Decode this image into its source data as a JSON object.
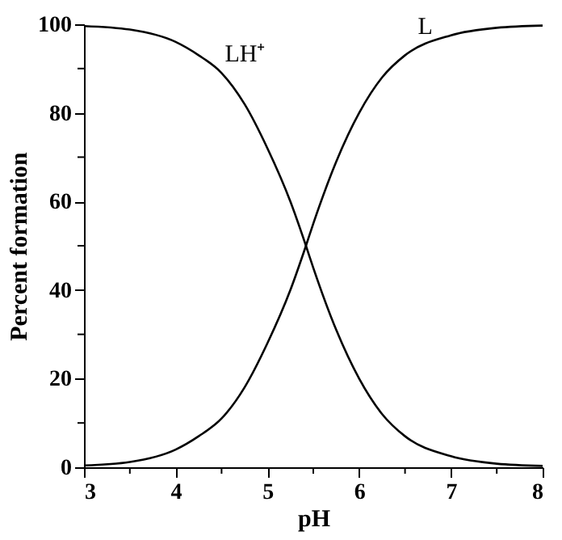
{
  "chart_data": {
    "type": "line",
    "xlabel": "pH",
    "ylabel": "Percent formation",
    "x": [
      3,
      3.5,
      4,
      4.25,
      4.5,
      4.75,
      5,
      5.25,
      5.42,
      5.5,
      5.75,
      6,
      6.25,
      6.5,
      7,
      7.5,
      8
    ],
    "series": [
      {
        "name": "LH⁺",
        "color": "#000000",
        "values": [
          99.6,
          98.8,
          96,
          93,
          89,
          82,
          72,
          60,
          50,
          45,
          31,
          20,
          12,
          7,
          2.5,
          0.8,
          0.3
        ]
      },
      {
        "name": "L",
        "color": "#000000",
        "values": [
          0.4,
          1.2,
          4,
          7,
          11,
          18,
          28,
          40,
          50,
          55,
          69,
          80,
          88,
          93,
          97.5,
          99.2,
          99.7
        ]
      }
    ],
    "xlim": [
      3,
      8
    ],
    "xticks": [
      3,
      {
        "value": 3.5,
        "label": null
      },
      4,
      {
        "value": 4.5,
        "label": null
      },
      5,
      {
        "value": 5.5,
        "label": null
      },
      6,
      {
        "value": 6.5,
        "label": null
      },
      7,
      {
        "value": 7.5,
        "label": null
      },
      8
    ],
    "ylim": [
      0,
      100
    ],
    "yticks": [
      0,
      {
        "value": 10,
        "label": null
      },
      20,
      {
        "value": 30,
        "label": null
      },
      40,
      {
        "value": 50,
        "label": null
      },
      60,
      {
        "value": 70,
        "label": null
      },
      80,
      {
        "value": 90,
        "label": null
      },
      100
    ],
    "grid": false,
    "marker": "none",
    "line_style": "solid"
  }
}
